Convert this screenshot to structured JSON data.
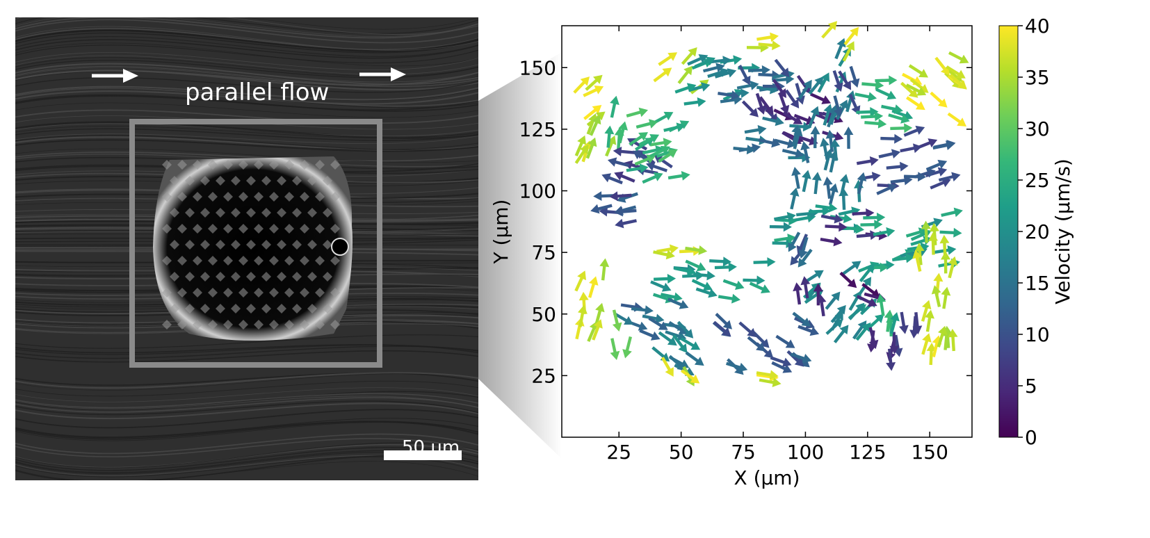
{
  "image_panel": {
    "flow_label": "parallel flow",
    "scale_bar_label": "50 µm"
  },
  "colors": {
    "viridis_ramp": [
      "#440154",
      "#482878",
      "#3e4989",
      "#31688e",
      "#26828e",
      "#1f9e89",
      "#35b779",
      "#6ece58",
      "#b5de2b",
      "#fde725"
    ],
    "frame": "#8a8a8a"
  },
  "chart_data": {
    "type": "quiver",
    "xlabel": "X (µm)",
    "ylabel": "Y (µm)",
    "xlim": [
      2,
      167
    ],
    "ylim": [
      0,
      167
    ],
    "xticks": [
      25,
      50,
      75,
      100,
      125,
      150
    ],
    "yticks": [
      25,
      50,
      75,
      100,
      125,
      150
    ],
    "colorbar": {
      "label": "Velocity (µm/s)",
      "range": [
        0,
        40
      ],
      "ticks": [
        0,
        5,
        10,
        15,
        20,
        25,
        30,
        35,
        40
      ],
      "colormap": "viridis"
    },
    "clusters": [
      {
        "x_range": [
          8,
          18
        ],
        "y_range": [
          125,
          148
        ],
        "angle_deg": 35,
        "speed": 37
      },
      {
        "x_range": [
          8,
          22
        ],
        "y_range": [
          108,
          130
        ],
        "angle_deg": 60,
        "speed": 36
      },
      {
        "x_range": [
          18,
          30
        ],
        "y_range": [
          120,
          135
        ],
        "angle_deg": 80,
        "speed": 28
      },
      {
        "x_range": [
          20,
          45
        ],
        "y_range": [
          100,
          120
        ],
        "angle_deg": 160,
        "speed": 8
      },
      {
        "x_range": [
          12,
          35
        ],
        "y_range": [
          85,
          100
        ],
        "angle_deg": 190,
        "speed": 10
      },
      {
        "x_range": [
          30,
          55
        ],
        "y_range": [
          105,
          135
        ],
        "angle_deg": 20,
        "speed": 26
      },
      {
        "x_range": [
          42,
          58
        ],
        "y_range": [
          142,
          155
        ],
        "angle_deg": 40,
        "speed": 36
      },
      {
        "x_range": [
          50,
          80
        ],
        "y_range": [
          135,
          155
        ],
        "angle_deg": 15,
        "speed": 20
      },
      {
        "x_range": [
          60,
          92
        ],
        "y_range": [
          135,
          150
        ],
        "angle_deg": 5,
        "speed": 14
      },
      {
        "x_range": [
          75,
          100
        ],
        "y_range": [
          130,
          150
        ],
        "angle_deg": -60,
        "speed": 8
      },
      {
        "x_range": [
          75,
          100
        ],
        "y_range": [
          112,
          130
        ],
        "angle_deg": 0,
        "speed": 15
      },
      {
        "x_range": [
          88,
          112
        ],
        "y_range": [
          120,
          140
        ],
        "angle_deg": -20,
        "speed": 3
      },
      {
        "x_range": [
          100,
          120
        ],
        "y_range": [
          130,
          160
        ],
        "angle_deg": 60,
        "speed": 18
      },
      {
        "x_range": [
          112,
          125
        ],
        "y_range": [
          132,
          148
        ],
        "angle_deg": -70,
        "speed": 9
      },
      {
        "x_range": [
          72,
          88
        ],
        "y_range": [
          158,
          163
        ],
        "angle_deg": 5,
        "speed": 37
      },
      {
        "x_range": [
          108,
          120
        ],
        "y_range": [
          155,
          168
        ],
        "angle_deg": 60,
        "speed": 37
      },
      {
        "x_range": [
          120,
          145
        ],
        "y_range": [
          125,
          145
        ],
        "angle_deg": -10,
        "speed": 25
      },
      {
        "x_range": [
          140,
          162
        ],
        "y_range": [
          125,
          155
        ],
        "angle_deg": -40,
        "speed": 38
      },
      {
        "x_range": [
          125,
          160
        ],
        "y_range": [
          100,
          125
        ],
        "angle_deg": 10,
        "speed": 10
      },
      {
        "x_range": [
          95,
          125
        ],
        "y_range": [
          95,
          125
        ],
        "angle_deg": 90,
        "speed": 16
      },
      {
        "x_range": [
          85,
          120
        ],
        "y_range": [
          78,
          95
        ],
        "angle_deg": 0,
        "speed": 22
      },
      {
        "x_range": [
          110,
          130
        ],
        "y_range": [
          78,
          92
        ],
        "angle_deg": 0,
        "speed": 6
      },
      {
        "x_range": [
          125,
          160
        ],
        "y_range": [
          68,
          92
        ],
        "angle_deg": 10,
        "speed": 22
      },
      {
        "x_range": [
          145,
          162
        ],
        "y_range": [
          55,
          85
        ],
        "angle_deg": 90,
        "speed": 36
      },
      {
        "x_range": [
          38,
          58
        ],
        "y_range": [
          72,
          80
        ],
        "angle_deg": 0,
        "speed": 37
      },
      {
        "x_range": [
          38,
          85
        ],
        "y_range": [
          55,
          72
        ],
        "angle_deg": -10,
        "speed": 22
      },
      {
        "x_range": [
          22,
          50
        ],
        "y_range": [
          40,
          58
        ],
        "angle_deg": -20,
        "speed": 14
      },
      {
        "x_range": [
          22,
          30
        ],
        "y_range": [
          30,
          48
        ],
        "angle_deg": -90,
        "speed": 30
      },
      {
        "x_range": [
          8,
          20
        ],
        "y_range": [
          40,
          75
        ],
        "angle_deg": 80,
        "speed": 37
      },
      {
        "x_range": [
          38,
          60
        ],
        "y_range": [
          26,
          44
        ],
        "angle_deg": -40,
        "speed": 18
      },
      {
        "x_range": [
          65,
          105
        ],
        "y_range": [
          28,
          48
        ],
        "angle_deg": -30,
        "speed": 12
      },
      {
        "x_range": [
          80,
          100
        ],
        "y_range": [
          68,
          80
        ],
        "angle_deg": -120,
        "speed": 12
      },
      {
        "x_range": [
          100,
          130
        ],
        "y_range": [
          42,
          70
        ],
        "angle_deg": 45,
        "speed": 20
      },
      {
        "x_range": [
          95,
          110
        ],
        "y_range": [
          50,
          62
        ],
        "angle_deg": 90,
        "speed": 4
      },
      {
        "x_range": [
          110,
          130
        ],
        "y_range": [
          55,
          65
        ],
        "angle_deg": -30,
        "speed": 3
      },
      {
        "x_range": [
          125,
          145
        ],
        "y_range": [
          30,
          50
        ],
        "angle_deg": -90,
        "speed": 6
      },
      {
        "x_range": [
          125,
          140
        ],
        "y_range": [
          42,
          55
        ],
        "angle_deg": 90,
        "speed": 25
      },
      {
        "x_range": [
          146,
          160
        ],
        "y_range": [
          30,
          58
        ],
        "angle_deg": 80,
        "speed": 37
      },
      {
        "x_range": [
          75,
          100
        ],
        "y_range": [
          22,
          26
        ],
        "angle_deg": 0,
        "speed": 38
      },
      {
        "x_range": [
          40,
          55
        ],
        "y_range": [
          22,
          30
        ],
        "angle_deg": -50,
        "speed": 37
      }
    ]
  }
}
